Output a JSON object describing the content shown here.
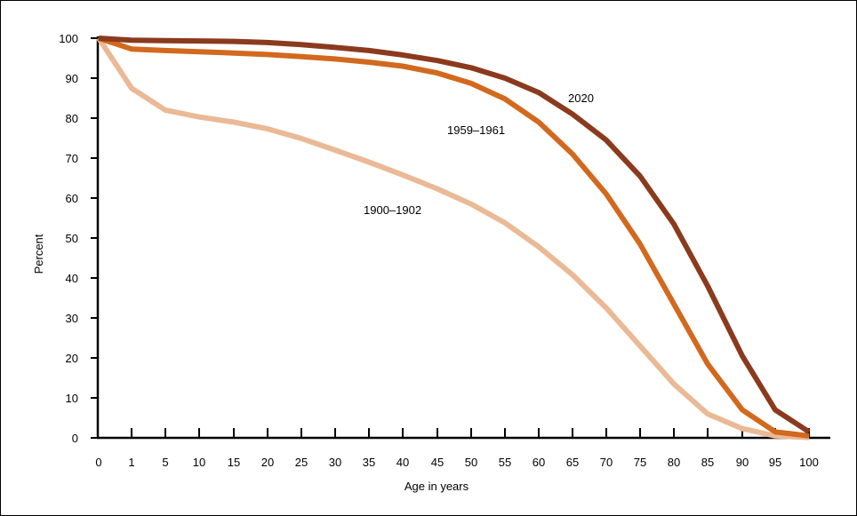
{
  "chart_data": {
    "type": "line",
    "xlabel": "Age in years",
    "ylabel": "Percent",
    "xlim": [
      0,
      100
    ],
    "ylim": [
      0,
      100
    ],
    "x_ticks": [
      0,
      1,
      5,
      10,
      15,
      20,
      25,
      30,
      35,
      40,
      45,
      50,
      55,
      60,
      65,
      70,
      75,
      80,
      85,
      90,
      95,
      100
    ],
    "y_ticks": [
      0,
      10,
      20,
      30,
      40,
      50,
      60,
      70,
      80,
      90,
      100
    ],
    "x": [
      0,
      1,
      5,
      10,
      15,
      20,
      25,
      30,
      35,
      40,
      45,
      50,
      55,
      60,
      65,
      70,
      75,
      80,
      85,
      90,
      95,
      100
    ],
    "series": [
      {
        "name": "2020",
        "color": "#8B3A1E",
        "values": [
          100,
          99.5,
          99.4,
          99.3,
          99.2,
          98.9,
          98.4,
          97.7,
          96.9,
          95.8,
          94.4,
          92.6,
          90.0,
          86.4,
          81.0,
          74.5,
          65.5,
          53.5,
          38.0,
          20.5,
          7.0,
          1.5
        ]
      },
      {
        "name": "1959–1961",
        "color": "#D2691E",
        "values": [
          100,
          97.3,
          96.9,
          96.6,
          96.3,
          95.9,
          95.4,
          94.8,
          94.0,
          93.0,
          91.3,
          88.7,
          84.8,
          79.0,
          71.0,
          61.0,
          48.5,
          33.5,
          18.5,
          7.0,
          1.5,
          0.5
        ]
      },
      {
        "name": "1900–1902",
        "color": "#EAB995",
        "values": [
          100,
          87.5,
          82.0,
          80.3,
          79.0,
          77.3,
          74.9,
          72.0,
          69.0,
          65.8,
          62.3,
          58.5,
          53.8,
          47.8,
          40.8,
          32.5,
          23.0,
          13.5,
          6.0,
          2.3,
          0.5,
          0.1
        ]
      }
    ]
  }
}
